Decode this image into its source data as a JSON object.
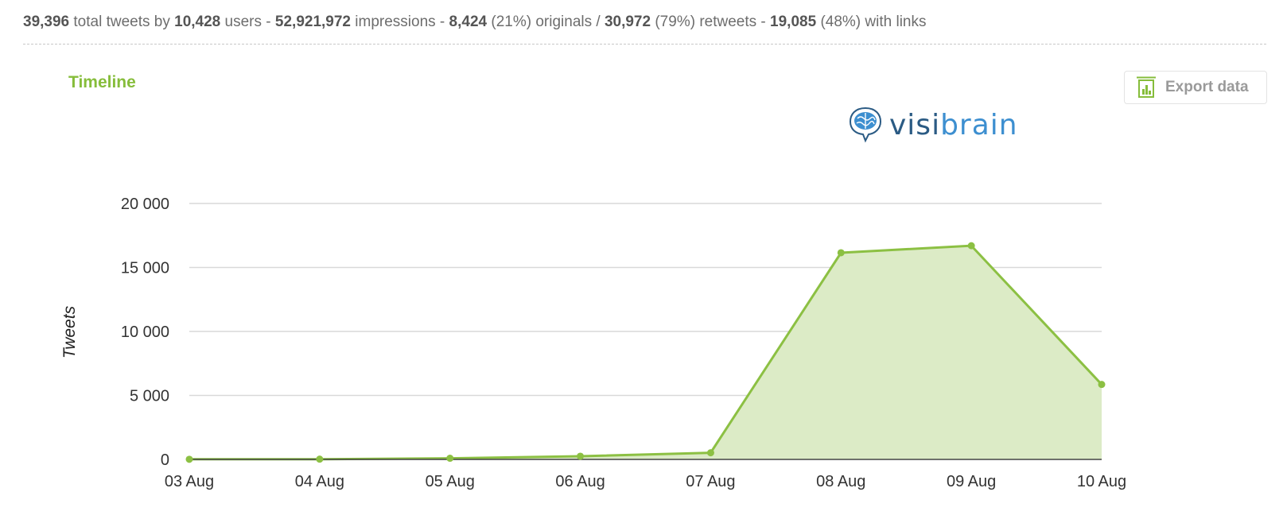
{
  "stats": {
    "total_tweets": "39,396",
    "total_tweets_label": "total tweets by",
    "users": "10,428",
    "users_label": "users -",
    "impressions": "52,921,972",
    "impressions_label": "impressions -",
    "originals": "8,424",
    "originals_pct": "(21%)",
    "originals_label": "originals /",
    "retweets": "30,972",
    "retweets_pct": "(79%)",
    "retweets_label": "retweets -",
    "links": "19,085",
    "links_pct": "(48%)",
    "links_label": "with links"
  },
  "export_button": {
    "label": "Export data",
    "icon": "spreadsheet-chart-icon"
  },
  "logo": {
    "text_dark": "visi",
    "text_light": "brain",
    "icon": "brain-icon"
  },
  "colors": {
    "accent": "#86bd3b",
    "line": "#8cc043",
    "area": "#dcebc6",
    "grid": "#d9d9d9",
    "logo_dark": "#2b5b84",
    "logo_light": "#3d8fd0"
  },
  "chart_data": {
    "type": "area",
    "title": "Timeline",
    "xlabel": "",
    "ylabel": "Tweets",
    "categories": [
      "03 Aug",
      "04 Aug",
      "05 Aug",
      "06 Aug",
      "07 Aug",
      "08 Aug",
      "09 Aug",
      "10 Aug"
    ],
    "values": [
      10,
      20,
      90,
      250,
      520,
      16150,
      16700,
      5860
    ],
    "ylim": [
      0,
      20000
    ],
    "yticks": [
      0,
      5000,
      10000,
      15000,
      20000
    ],
    "ytick_labels": [
      "0",
      "5 000",
      "10 000",
      "15 000",
      "20 000"
    ],
    "grid": true,
    "legend": "none"
  }
}
